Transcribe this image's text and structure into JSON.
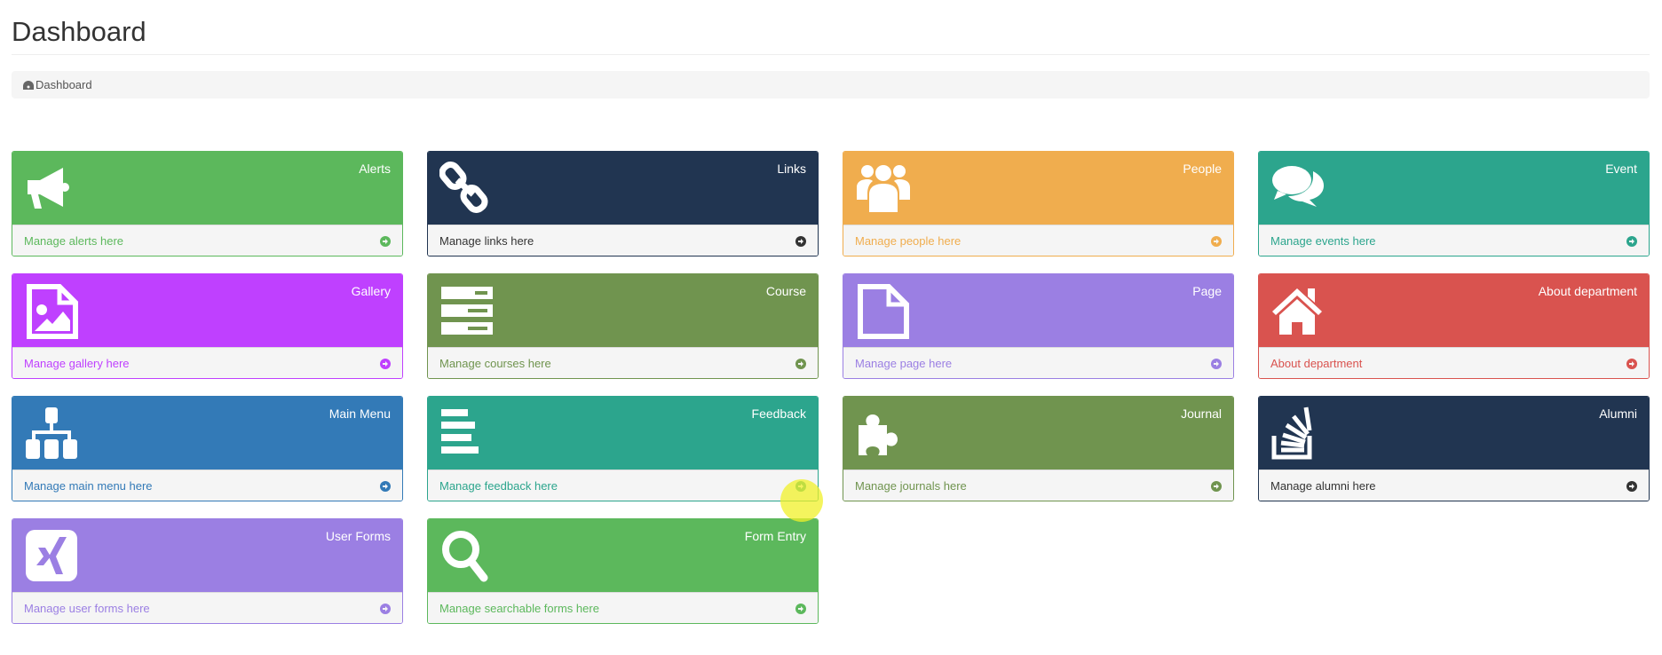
{
  "page": {
    "title": "Dashboard"
  },
  "breadcrumb": {
    "icon": "dashboard-icon",
    "label": "Dashboard"
  },
  "cards": [
    {
      "title": "Alerts",
      "link": "Manage alerts here",
      "color": "#5cb85c",
      "icon": "bullhorn"
    },
    {
      "title": "Links",
      "link": "Manage links here",
      "color": "#213551",
      "icon": "chain",
      "linkColor": "#333333"
    },
    {
      "title": "People",
      "link": "Manage people here",
      "color": "#f0ad4e",
      "icon": "users"
    },
    {
      "title": "Event",
      "link": "Manage events here",
      "color": "#2ca58d",
      "icon": "comments"
    },
    {
      "title": "Gallery",
      "link": "Manage gallery here",
      "color": "#bf40ff",
      "icon": "file-image"
    },
    {
      "title": "Course",
      "link": "Manage courses here",
      "color": "#70944f",
      "icon": "server"
    },
    {
      "title": "Page",
      "link": "Manage page here",
      "color": "#9b7fe3",
      "icon": "file"
    },
    {
      "title": "About department",
      "link": "About department",
      "color": "#d9534f",
      "icon": "home"
    },
    {
      "title": "Main Menu",
      "link": "Manage main menu here",
      "color": "#337ab7",
      "icon": "sitemap"
    },
    {
      "title": "Feedback",
      "link": "Manage feedback here",
      "color": "#2ca58d",
      "icon": "align-left"
    },
    {
      "title": "Journal",
      "link": "Manage journals here",
      "color": "#70944f",
      "icon": "puzzle"
    },
    {
      "title": "Alumni",
      "link": "Manage alumni here",
      "color": "#213551",
      "icon": "stack-overflow",
      "linkColor": "#333333"
    },
    {
      "title": "User Forms",
      "link": "Manage user forms here",
      "color": "#9b7fe3",
      "icon": "xing"
    },
    {
      "title": "Form Entry",
      "link": "Manage searchable forms here",
      "color": "#5cb85c",
      "icon": "search"
    }
  ]
}
